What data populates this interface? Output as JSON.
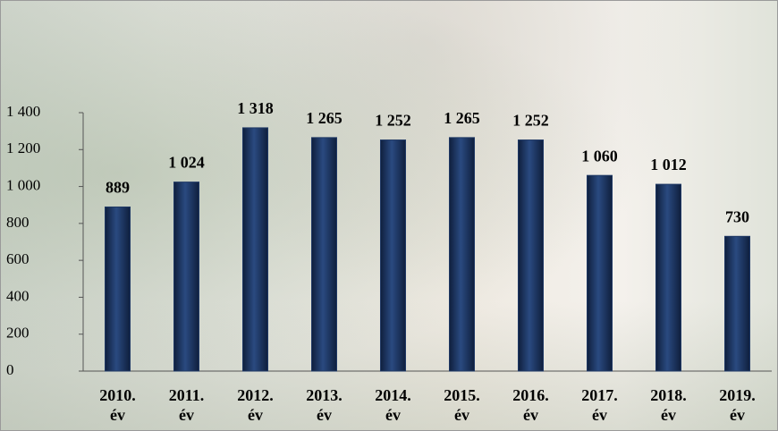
{
  "chart_data": {
    "type": "bar",
    "categories": [
      "2010. év",
      "2011. év",
      "2012. év",
      "2013. év",
      "2014. év",
      "2015. év",
      "2016. év",
      "2017. év",
      "2018. év",
      "2019. év"
    ],
    "values": [
      889,
      1024,
      1318,
      1265,
      1252,
      1265,
      1252,
      1060,
      1012,
      730
    ],
    "value_labels": [
      "889",
      "1 024",
      "1 318",
      "1 265",
      "1 252",
      "1 265",
      "1 252",
      "1 060",
      "1 012",
      "730"
    ],
    "color": "#1f3864",
    "ylim": [
      0,
      1400
    ],
    "yticks": [
      0,
      200,
      400,
      600,
      800,
      {
        "value": 1000,
        "label": "1 000"
      },
      {
        "value": 1200,
        "label": "1 200"
      },
      {
        "value": 1400,
        "label": "1 400"
      }
    ],
    "grid": false
  }
}
